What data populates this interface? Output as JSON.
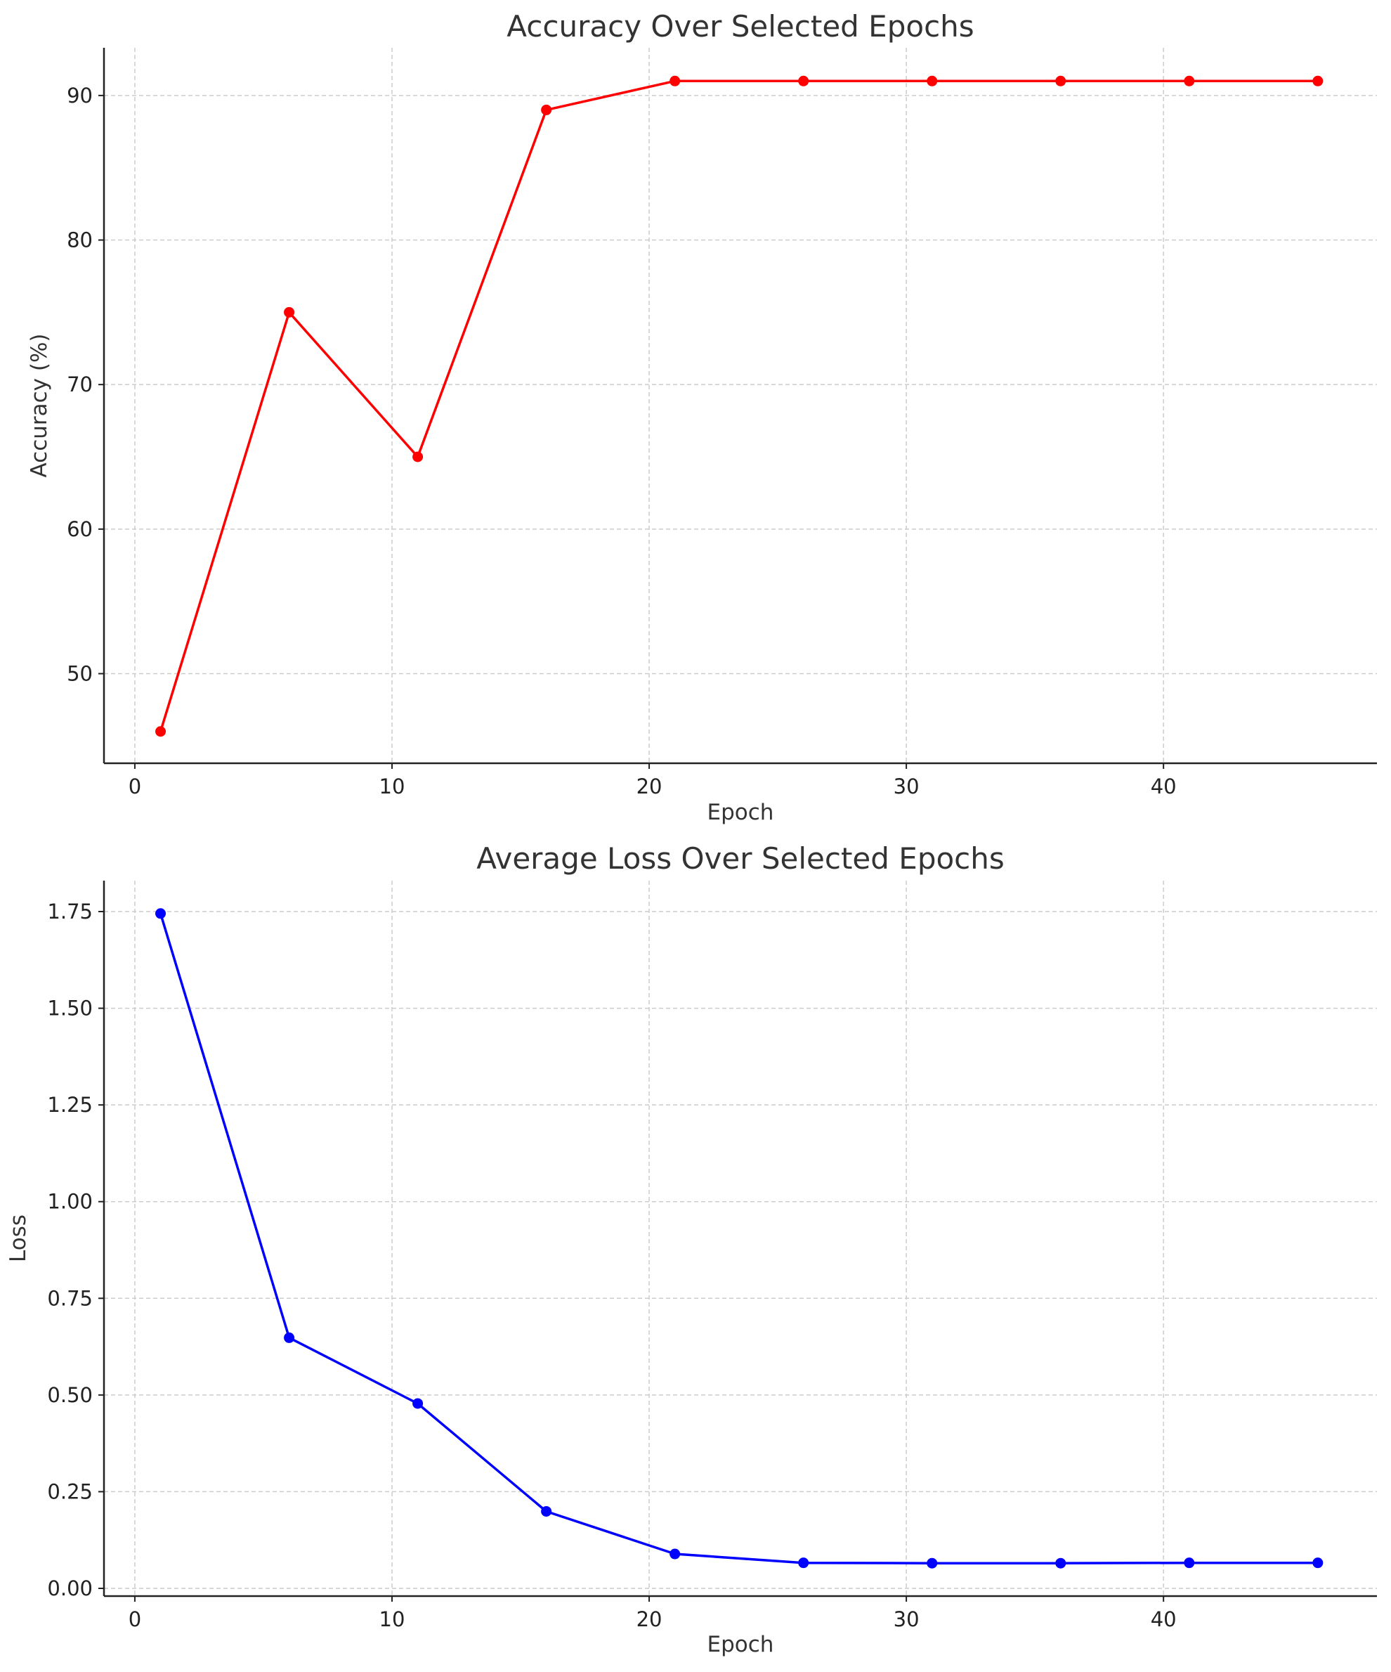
{
  "chart_data": [
    {
      "type": "line",
      "title": "Accuracy Over Selected Epochs",
      "xlabel": "Epoch",
      "ylabel": "Accuracy (%)",
      "xlim": [
        -1.2,
        48.3
      ],
      "ylim": [
        43.8,
        93.3
      ],
      "xticks": [
        0,
        10,
        20,
        30,
        40
      ],
      "yticks": [
        50,
        60,
        70,
        80,
        90
      ],
      "ytick_labels": [
        "50",
        "60",
        "70",
        "80",
        "90"
      ],
      "grid": true,
      "color": "#ff0000",
      "series": [
        {
          "x": [
            1,
            6,
            11,
            16,
            21,
            26,
            31,
            36,
            41,
            46
          ],
          "values": [
            46,
            75,
            65,
            89,
            91,
            91,
            91,
            91,
            91,
            91
          ]
        }
      ]
    },
    {
      "type": "line",
      "title": "Average Loss Over Selected Epochs",
      "xlabel": "Epoch",
      "ylabel": "Loss",
      "xlim": [
        -1.2,
        48.3
      ],
      "ylim": [
        -0.02,
        1.83
      ],
      "xticks": [
        0,
        10,
        20,
        30,
        40
      ],
      "yticks": [
        0.0,
        0.25,
        0.5,
        0.75,
        1.0,
        1.25,
        1.5,
        1.75
      ],
      "ytick_labels": [
        "0.00",
        "0.25",
        "0.50",
        "0.75",
        "1.00",
        "1.25",
        "1.50",
        "1.75"
      ],
      "grid": true,
      "color": "#0000ff",
      "series": [
        {
          "x": [
            1,
            6,
            11,
            16,
            21,
            26,
            31,
            36,
            41,
            46
          ],
          "values": [
            1.745,
            0.648,
            0.478,
            0.199,
            0.089,
            0.066,
            0.065,
            0.065,
            0.066,
            0.066
          ]
        }
      ]
    }
  ]
}
